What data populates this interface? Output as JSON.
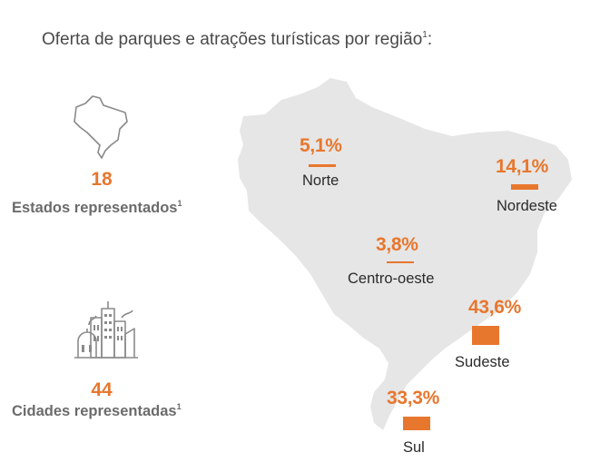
{
  "title": {
    "text": "Oferta de parques e atrações turísticas por região",
    "footnote": "1",
    "end": ":"
  },
  "stats": [
    {
      "icon": "brazil-outline-icon",
      "value": "18",
      "label": "Estados representados",
      "footnote": "1"
    },
    {
      "icon": "city-buildings-icon",
      "value": "44",
      "label": "Cidades representadas",
      "footnote": "1"
    }
  ],
  "regions": [
    {
      "name": "Norte",
      "percent_label": "5,1%",
      "value": 5.1
    },
    {
      "name": "Nordeste",
      "percent_label": "14,1%",
      "value": 14.1
    },
    {
      "name": "Centro-oeste",
      "percent_label": "3,8%",
      "value": 3.8
    },
    {
      "name": "Sudeste",
      "percent_label": "43,6%",
      "value": 43.6
    },
    {
      "name": "Sul",
      "percent_label": "33,3%",
      "value": 33.3
    }
  ],
  "colors": {
    "accent": "#e8772e",
    "map_fill": "#e6e6e6",
    "text": "#4a4a4a",
    "label_gray": "#6b6b6b",
    "icon_stroke": "#8a8a8a"
  }
}
